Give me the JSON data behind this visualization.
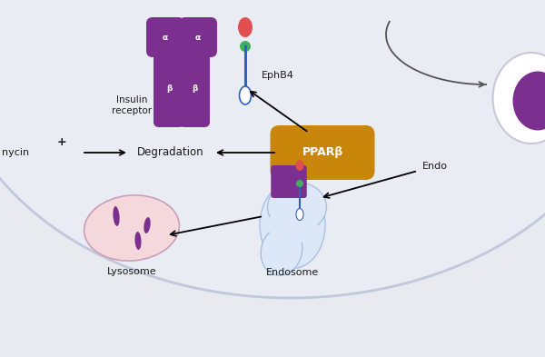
{
  "bg_color": "#e8eaf0",
  "cell_bg": "#e4e8f2",
  "cell_membrane_color": "#b8bfd4",
  "purple": "#7b3090",
  "orange": "#c8860a",
  "pink_lysosome": "#f5d8dc",
  "pink_lysosome_border": "#c8a0b8",
  "blue_endosome": "#dce8f8",
  "blue_endosome_border": "#a8c0e0",
  "text_color": "#1a1a1a",
  "labels": {
    "insulin_receptor": "Insulin\nreceptor",
    "ephb4": "EphB4",
    "pparb": "PPARβ",
    "rapamycin": "nycin",
    "degradation": "Degradation",
    "lysosome": "Lysosome",
    "endosome": "Endosome",
    "endo_label": "Endo",
    "alpha": "α",
    "beta": "β",
    "plus": "+"
  }
}
